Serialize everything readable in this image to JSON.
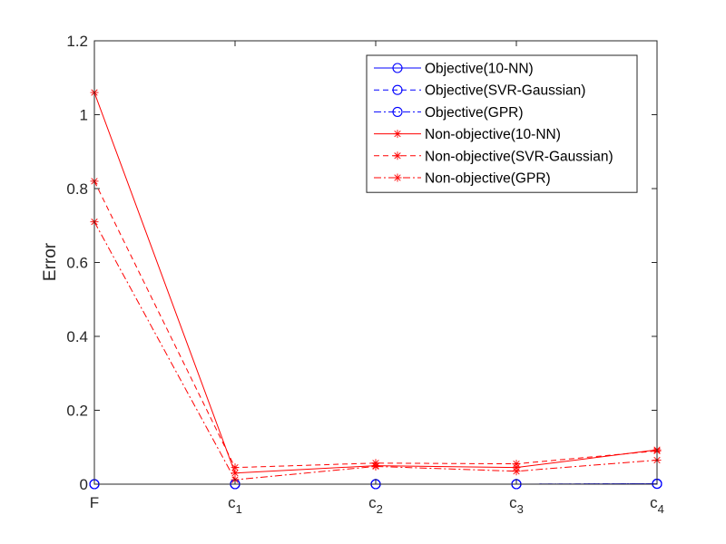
{
  "chart_data": {
    "type": "line",
    "ylabel": "Error",
    "categories": [
      {
        "main": "F",
        "sub": ""
      },
      {
        "main": "c",
        "sub": "1"
      },
      {
        "main": "c",
        "sub": "2"
      },
      {
        "main": "c",
        "sub": "3"
      },
      {
        "main": "c",
        "sub": "4"
      }
    ],
    "ylim": [
      0,
      1.2
    ],
    "yticks": [
      "0",
      "0.2",
      "0.4",
      "0.6",
      "0.8",
      "1",
      "1.2"
    ],
    "grid": false,
    "legend_position": "top-right",
    "series": [
      {
        "name": "Objective(10-NN)",
        "color": "#0000ff",
        "dash": "solid",
        "marker": "circle",
        "values": [
          0.0,
          0.0,
          0.0,
          0.0,
          0.001
        ]
      },
      {
        "name": "Objective(SVR-Gaussian)",
        "color": "#0000ff",
        "dash": "dashed",
        "marker": "circle",
        "values": [
          0.0,
          0.0,
          0.0,
          0.0,
          0.001
        ]
      },
      {
        "name": "Objective(GPR)",
        "color": "#0000ff",
        "dash": "dashdot",
        "marker": "circle",
        "values": [
          0.0,
          0.0,
          0.0,
          0.0,
          0.001
        ]
      },
      {
        "name": "Non-objective(10-NN)",
        "color": "#ff0000",
        "dash": "solid",
        "marker": "star",
        "values": [
          1.06,
          0.03,
          0.05,
          0.045,
          0.093
        ]
      },
      {
        "name": "Non-objective(SVR-Gaussian)",
        "color": "#ff0000",
        "dash": "dashed",
        "marker": "star",
        "values": [
          0.82,
          0.045,
          0.057,
          0.055,
          0.09
        ]
      },
      {
        "name": "Non-objective(GPR)",
        "color": "#ff0000",
        "dash": "dashdot",
        "marker": "star",
        "values": [
          0.71,
          0.012,
          0.048,
          0.035,
          0.065
        ]
      }
    ]
  }
}
